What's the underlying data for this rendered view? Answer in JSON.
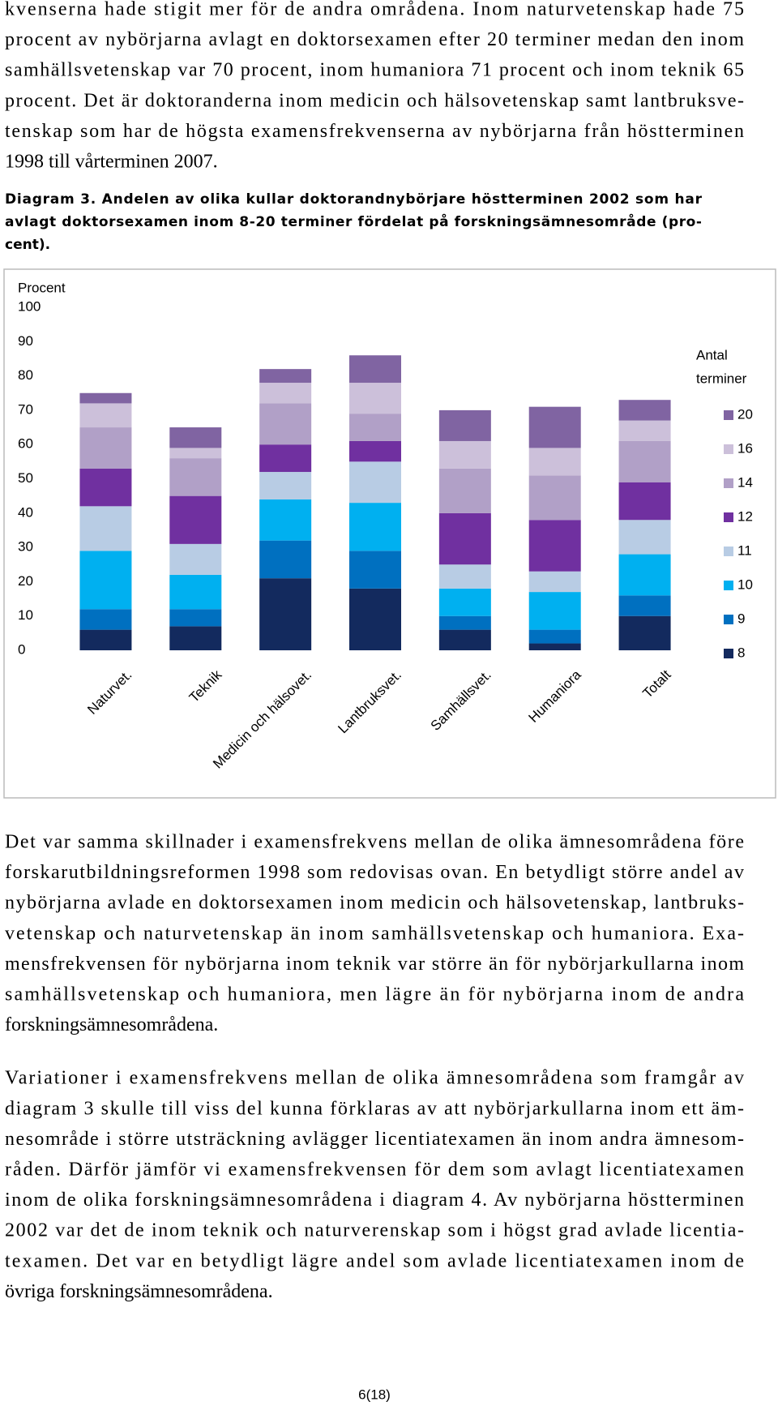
{
  "text_before": [
    "kvenserna hade stigit mer för de andra områdena. Inom naturvetenskap hade 75",
    "procent av nybörjarna avlagt en doktorsexamen efter 20 terminer medan den inom",
    "samhällsvetenskap var 70 procent, inom humaniora 71 procent och inom teknik 65",
    "procent. Det är doktoranderna inom medicin och hälsovetenskap samt lantbruksve-",
    "tenskap som har de högsta examensfrekvenserna av nybörjarna från höstterminen",
    "1998 till vårterminen 2007."
  ],
  "caption": [
    "Diagram 3. Andelen av olika kullar doktorandnybörjare höstterminen 2002 som har",
    "avlagt doktorsexamen inom 8-20 terminer fördelat på forskningsämnesområde (pro-",
    "cent)."
  ],
  "chart_data": {
    "type": "bar",
    "stacked": true,
    "y_label": "Procent",
    "legend_title": [
      "Antal",
      "terminer"
    ],
    "categories": [
      "Naturvet.",
      "Teknik",
      "Medicin och hälsovet.",
      "Lantbruksvet.",
      "Samhällsvet.",
      "Humaniora",
      "Totalt"
    ],
    "series": [
      {
        "name": "8",
        "color": "#132a5e",
        "values": [
          6,
          7,
          21,
          18,
          6,
          2,
          10
        ]
      },
      {
        "name": "9",
        "color": "#0070c0",
        "values": [
          6,
          5,
          11,
          11,
          4,
          4,
          6
        ]
      },
      {
        "name": "10",
        "color": "#00b0f0",
        "values": [
          17,
          10,
          12,
          14,
          8,
          11,
          12
        ]
      },
      {
        "name": "11",
        "color": "#b8cce4",
        "values": [
          13,
          9,
          8,
          12,
          7,
          6,
          10
        ]
      },
      {
        "name": "12",
        "color": "#7030a0",
        "values": [
          11,
          14,
          8,
          6,
          15,
          15,
          11
        ]
      },
      {
        "name": "14",
        "color": "#b1a0c7",
        "values": [
          12,
          11,
          12,
          8,
          13,
          13,
          12
        ]
      },
      {
        "name": "16",
        "color": "#ccc0da",
        "values": [
          7,
          3,
          6,
          9,
          8,
          8,
          6
        ]
      },
      {
        "name": "20",
        "color": "#8064a2",
        "values": [
          3,
          6,
          4,
          8,
          9,
          12,
          6
        ]
      }
    ],
    "ylim": [
      0,
      100
    ],
    "yticks": [
      0,
      10,
      20,
      30,
      40,
      50,
      60,
      70,
      80,
      90,
      100
    ],
    "grid": false
  },
  "text_after": [
    [
      "Det var samma skillnader i examensfrekvens mellan de olika ämnesområdena före",
      "forskarutbildningsreformen 1998 som redovisas ovan. En betydligt större andel av",
      "nybörjarna avlade en doktorsexamen inom medicin och hälsovetenskap, lantbruks-",
      "vetenskap och naturvetenskap än inom samhällsvetenskap och humaniora. Exa-",
      "mensfrekvensen för nybörjarna inom teknik var större än för nybörjarkullarna inom",
      "samhällsvetenskap och humaniora, men lägre än för nybörjarna inom de andra",
      "forskningsämnesområdena."
    ],
    [
      "Variationer i examensfrekvens mellan de olika ämnesområdena som framgår av",
      "diagram 3 skulle till viss del kunna förklaras av att nybörjarkullarna inom ett äm-",
      "nesområde i större utsträckning avlägger licentiatexamen än inom andra ämnesom-",
      "råden. Därför jämför vi examensfrekvensen för dem som avlagt licentiatexamen",
      "inom de olika forskningsämnesområdena i diagram 4. Av nybörjarna höstterminen",
      "2002 var det de inom teknik och naturverenskap som i högst grad avlade licentia-",
      "texamen. Det var en betydligt lägre andel som avlade licentiatexamen inom de",
      "övriga forskningsämnesområdena."
    ]
  ],
  "page_number": "6(18)"
}
